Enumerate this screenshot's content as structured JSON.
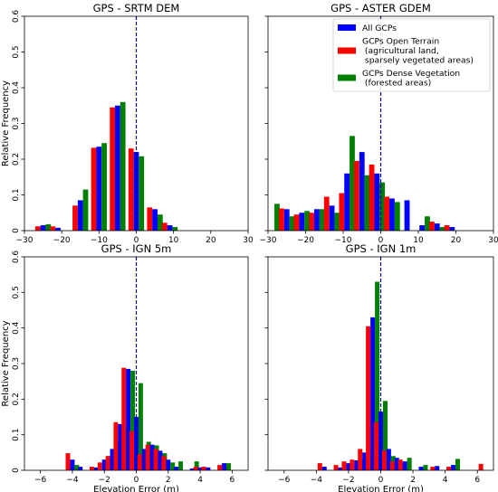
{
  "legend": {
    "placement": "top-right of top-right panel",
    "entries": [
      {
        "label": "All GCPs",
        "color": "#0000ff"
      },
      {
        "label": "GCPs Open Terrain\n (agricultural land,\n sparsely vegetated areas)",
        "color": "#ff0000"
      },
      {
        "label": "GCPs Dense Vegetation\n (forested areas)",
        "color": "#008000"
      }
    ]
  },
  "reference_line": {
    "x": 0,
    "color": "#00008b",
    "style": "dashed"
  },
  "chart_data": [
    {
      "type": "bar",
      "title": "GPS - SRTM DEM",
      "xlabel": "",
      "ylabel": "Relative Frequency",
      "xlim": [
        -30,
        30
      ],
      "ylim": [
        0,
        0.6
      ],
      "xticks": [
        -30,
        -20,
        -10,
        0,
        10,
        20,
        30
      ],
      "yticks": [
        0.0,
        0.1,
        0.2,
        0.3,
        0.4,
        0.5,
        0.6
      ],
      "grid": false,
      "bin_centers": [
        -25,
        -21,
        -15,
        -10,
        -5,
        0,
        5,
        9
      ],
      "series": [
        {
          "color": "#ff0000",
          "values": [
            0.012,
            0.012,
            0.07,
            0.232,
            0.345,
            0.23,
            0.065,
            0.022
          ]
        },
        {
          "color": "#0000ff",
          "values": [
            0.015,
            0.008,
            0.085,
            0.235,
            0.35,
            0.22,
            0.06,
            0.015
          ]
        },
        {
          "color": "#008000",
          "values": [
            0.018,
            0.0,
            0.115,
            0.245,
            0.36,
            0.208,
            0.045,
            0.01
          ]
        }
      ]
    },
    {
      "type": "bar",
      "title": "GPS - ASTER GDEM",
      "xlabel": "",
      "ylabel": "",
      "xlim": [
        -30,
        30
      ],
      "ylim": [
        0,
        0.6
      ],
      "xticks": [
        -30,
        -20,
        -10,
        0,
        10,
        20,
        30
      ],
      "yticks": [
        0.0,
        0.1,
        0.2,
        0.3,
        0.4,
        0.5,
        0.6
      ],
      "grid": false,
      "bin_centers": [
        -29,
        -25,
        -21,
        -17,
        -13,
        -9,
        -5,
        -1,
        3,
        7,
        11,
        15,
        19
      ],
      "series": [
        {
          "color": "#ff0000",
          "values": [
            0.0,
            0.062,
            0.045,
            0.05,
            0.095,
            0.105,
            0.195,
            0.185,
            0.095,
            0.0,
            0.0,
            0.025,
            0.015
          ]
        },
        {
          "color": "#0000ff",
          "values": [
            0.0,
            0.06,
            0.05,
            0.06,
            0.07,
            0.16,
            0.22,
            0.16,
            0.09,
            0.085,
            0.015,
            0.02,
            0.01
          ]
        },
        {
          "color": "#008000",
          "values": [
            0.075,
            0.04,
            0.055,
            0.06,
            0.05,
            0.265,
            0.155,
            0.135,
            0.08,
            0.0,
            0.04,
            0.01,
            0.0
          ]
        }
      ]
    },
    {
      "type": "bar",
      "title": "GPS - IGN 5m",
      "xlabel": "Elevation Error (m)",
      "ylabel": "Relative Frequency",
      "xlim": [
        -7,
        7
      ],
      "ylim": [
        0,
        0.6
      ],
      "xticks": [
        -6,
        -4,
        -2,
        0,
        2,
        4,
        6
      ],
      "yticks": [
        0.0,
        0.1,
        0.2,
        0.3,
        0.4,
        0.5,
        0.6
      ],
      "grid": false,
      "bin_centers": [
        -4.0,
        -3.5,
        -2.5,
        -2.0,
        -1.5,
        -1.0,
        -0.5,
        0.0,
        0.5,
        1.0,
        1.5,
        2.0,
        2.5,
        3.5,
        4.0,
        4.5,
        5.5
      ],
      "series": [
        {
          "color": "#ff0000",
          "values": [
            0.048,
            0.0,
            0.01,
            0.022,
            0.04,
            0.135,
            0.288,
            0.11,
            0.045,
            0.072,
            0.06,
            0.04,
            0.0,
            0.0,
            0.01,
            0.01,
            0.015
          ]
        },
        {
          "color": "#0000ff",
          "values": [
            0.03,
            0.01,
            0.008,
            0.03,
            0.06,
            0.13,
            0.285,
            0.15,
            0.06,
            0.072,
            0.055,
            0.03,
            0.01,
            0.005,
            0.008,
            0.008,
            0.02
          ]
        },
        {
          "color": "#008000",
          "values": [
            0.015,
            0.0,
            0.0,
            0.04,
            0.08,
            0.12,
            0.28,
            0.245,
            0.08,
            0.07,
            0.048,
            0.022,
            0.025,
            0.025,
            0.0,
            0.0,
            0.02
          ]
        }
      ]
    },
    {
      "type": "bar",
      "title": "GPS - IGN 1m",
      "xlabel": "Elevation Error (m)",
      "ylabel": "",
      "xlim": [
        -7,
        7
      ],
      "ylim": [
        0,
        0.6
      ],
      "xticks": [
        -6,
        -4,
        -2,
        0,
        2,
        4,
        6
      ],
      "yticks": [
        0.0,
        0.1,
        0.2,
        0.3,
        0.4,
        0.5,
        0.6
      ],
      "grid": false,
      "bin_centers": [
        -3.5,
        -2.5,
        -2.0,
        -1.5,
        -1.0,
        -0.5,
        0.0,
        0.5,
        1.0,
        1.5,
        2.5,
        3.5,
        4.5,
        6.5
      ],
      "series": [
        {
          "color": "#ff0000",
          "values": [
            0.02,
            0.015,
            0.025,
            0.03,
            0.06,
            0.405,
            0.135,
            0.055,
            0.025,
            0.03,
            0.0,
            0.01,
            0.01,
            0.018
          ]
        },
        {
          "color": "#0000ff",
          "values": [
            0.01,
            0.008,
            0.02,
            0.028,
            0.05,
            0.43,
            0.165,
            0.06,
            0.035,
            0.025,
            0.01,
            0.012,
            0.015,
            0.0
          ]
        },
        {
          "color": "#008000",
          "values": [
            0.0,
            0.0,
            0.0,
            0.03,
            0.045,
            0.53,
            0.195,
            0.04,
            0.018,
            0.035,
            0.015,
            0.0,
            0.032,
            0.0
          ]
        }
      ]
    }
  ]
}
